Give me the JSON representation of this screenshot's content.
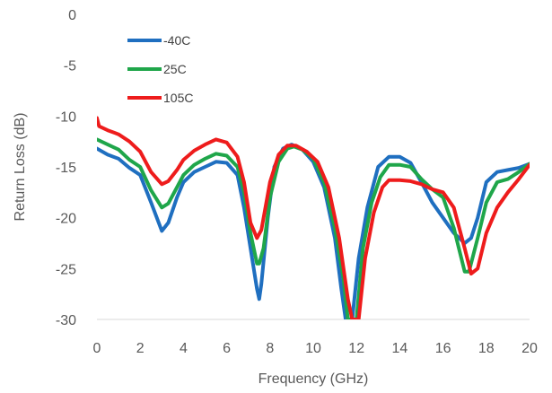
{
  "chart_data": {
    "type": "line",
    "xlabel": "Frequency (GHz)",
    "ylabel": "Return Loss (dB)",
    "xlim": [
      0,
      20
    ],
    "ylim": [
      -30,
      0
    ],
    "xticks": [
      0,
      2,
      4,
      6,
      8,
      10,
      12,
      14,
      16,
      18,
      20
    ],
    "yticks": [
      0,
      -5,
      -10,
      -15,
      -20,
      -25,
      -30
    ],
    "xtick_labels": [
      "0",
      "2",
      "4",
      "6",
      "8",
      "10",
      "12",
      "14",
      "16",
      "18",
      "20"
    ],
    "ytick_labels": [
      "0",
      "-5",
      "-10",
      "-15",
      "-20",
      "-25",
      "-30"
    ],
    "grid": false,
    "legend_position": "top-left",
    "series": [
      {
        "name": "-40C",
        "color": "#1f6fc0",
        "points": [
          [
            0,
            -13.2
          ],
          [
            0.5,
            -13.8
          ],
          [
            1,
            -14.2
          ],
          [
            1.5,
            -15.1
          ],
          [
            2,
            -15.8
          ],
          [
            2.5,
            -18.5
          ],
          [
            3,
            -21.3
          ],
          [
            3.3,
            -20.5
          ],
          [
            3.7,
            -18.0
          ],
          [
            4,
            -16.5
          ],
          [
            4.5,
            -15.5
          ],
          [
            5,
            -15.0
          ],
          [
            5.5,
            -14.5
          ],
          [
            6,
            -14.6
          ],
          [
            6.5,
            -15.8
          ],
          [
            6.8,
            -19.0
          ],
          [
            7.1,
            -23.0
          ],
          [
            7.4,
            -27.0
          ],
          [
            7.5,
            -28.0
          ],
          [
            7.6,
            -26.5
          ],
          [
            7.9,
            -20.0
          ],
          [
            8.2,
            -15.0
          ],
          [
            8.6,
            -13.2
          ],
          [
            9,
            -12.8
          ],
          [
            9.5,
            -13.3
          ],
          [
            10,
            -14.5
          ],
          [
            10.5,
            -17.0
          ],
          [
            11,
            -22.0
          ],
          [
            11.3,
            -27.0
          ],
          [
            11.5,
            -30.0
          ],
          [
            11.8,
            -30.0
          ],
          [
            12.1,
            -24.0
          ],
          [
            12.5,
            -19.0
          ],
          [
            13,
            -15.0
          ],
          [
            13.5,
            -14.0
          ],
          [
            14,
            -14.0
          ],
          [
            14.5,
            -14.6
          ],
          [
            15,
            -16.5
          ],
          [
            15.5,
            -18.5
          ],
          [
            16,
            -20.0
          ],
          [
            16.5,
            -21.5
          ],
          [
            17,
            -22.5
          ],
          [
            17.3,
            -22.0
          ],
          [
            17.6,
            -20.0
          ],
          [
            18,
            -16.5
          ],
          [
            18.5,
            -15.5
          ],
          [
            19,
            -15.3
          ],
          [
            19.5,
            -15.1
          ],
          [
            20,
            -14.7
          ]
        ]
      },
      {
        "name": "25C",
        "color": "#1fa64a",
        "points": [
          [
            0,
            -12.3
          ],
          [
            0.5,
            -12.8
          ],
          [
            1,
            -13.3
          ],
          [
            1.5,
            -14.3
          ],
          [
            2,
            -15.0
          ],
          [
            2.5,
            -17.3
          ],
          [
            3,
            -19.0
          ],
          [
            3.3,
            -18.6
          ],
          [
            3.7,
            -17.0
          ],
          [
            4,
            -15.8
          ],
          [
            4.5,
            -14.8
          ],
          [
            5,
            -14.2
          ],
          [
            5.5,
            -13.7
          ],
          [
            6,
            -13.9
          ],
          [
            6.5,
            -15.0
          ],
          [
            6.8,
            -17.5
          ],
          [
            7.1,
            -21.5
          ],
          [
            7.4,
            -24.5
          ],
          [
            7.5,
            -24.5
          ],
          [
            7.7,
            -23.0
          ],
          [
            8,
            -18.0
          ],
          [
            8.4,
            -14.5
          ],
          [
            8.8,
            -13.2
          ],
          [
            9.1,
            -13.0
          ],
          [
            9.5,
            -13.3
          ],
          [
            10,
            -14.2
          ],
          [
            10.5,
            -16.5
          ],
          [
            11,
            -21.0
          ],
          [
            11.4,
            -26.0
          ],
          [
            11.6,
            -30.0
          ],
          [
            12,
            -30.0
          ],
          [
            12.3,
            -23.0
          ],
          [
            12.7,
            -18.5
          ],
          [
            13.1,
            -16.0
          ],
          [
            13.5,
            -14.8
          ],
          [
            14,
            -14.8
          ],
          [
            14.5,
            -15.0
          ],
          [
            15,
            -16.2
          ],
          [
            15.5,
            -17.2
          ],
          [
            16,
            -18.0
          ],
          [
            16.5,
            -21.0
          ],
          [
            17,
            -25.3
          ],
          [
            17.2,
            -25.3
          ],
          [
            17.6,
            -22.0
          ],
          [
            18,
            -18.5
          ],
          [
            18.5,
            -16.5
          ],
          [
            19,
            -16.2
          ],
          [
            19.5,
            -15.5
          ],
          [
            20,
            -14.7
          ]
        ]
      },
      {
        "name": "105C",
        "color": "#ee1c1c",
        "points": [
          [
            0,
            -10.2
          ],
          [
            0.1,
            -11.0
          ],
          [
            0.5,
            -11.4
          ],
          [
            1,
            -11.8
          ],
          [
            1.5,
            -12.5
          ],
          [
            2,
            -13.5
          ],
          [
            2.5,
            -15.5
          ],
          [
            3,
            -16.7
          ],
          [
            3.3,
            -16.4
          ],
          [
            3.7,
            -15.3
          ],
          [
            4,
            -14.3
          ],
          [
            4.5,
            -13.4
          ],
          [
            5,
            -12.8
          ],
          [
            5.5,
            -12.3
          ],
          [
            6,
            -12.6
          ],
          [
            6.5,
            -14.0
          ],
          [
            6.8,
            -16.5
          ],
          [
            7.1,
            -20.5
          ],
          [
            7.4,
            -22.0
          ],
          [
            7.6,
            -21.2
          ],
          [
            8,
            -16.5
          ],
          [
            8.4,
            -13.8
          ],
          [
            8.8,
            -12.9
          ],
          [
            9.2,
            -12.9
          ],
          [
            9.7,
            -13.5
          ],
          [
            10.2,
            -14.5
          ],
          [
            10.7,
            -17.0
          ],
          [
            11.2,
            -22.0
          ],
          [
            11.6,
            -28.0
          ],
          [
            11.8,
            -30.0
          ],
          [
            12.1,
            -30.0
          ],
          [
            12.4,
            -24.0
          ],
          [
            12.8,
            -19.5
          ],
          [
            13.2,
            -17.0
          ],
          [
            13.5,
            -16.3
          ],
          [
            14,
            -16.3
          ],
          [
            14.5,
            -16.4
          ],
          [
            15,
            -16.7
          ],
          [
            15.5,
            -17.2
          ],
          [
            16,
            -17.5
          ],
          [
            16.5,
            -19.0
          ],
          [
            17,
            -23.0
          ],
          [
            17.3,
            -25.5
          ],
          [
            17.6,
            -25.0
          ],
          [
            18,
            -21.5
          ],
          [
            18.5,
            -19.0
          ],
          [
            19,
            -17.5
          ],
          [
            19.5,
            -16.2
          ],
          [
            20,
            -14.8
          ]
        ]
      }
    ]
  }
}
